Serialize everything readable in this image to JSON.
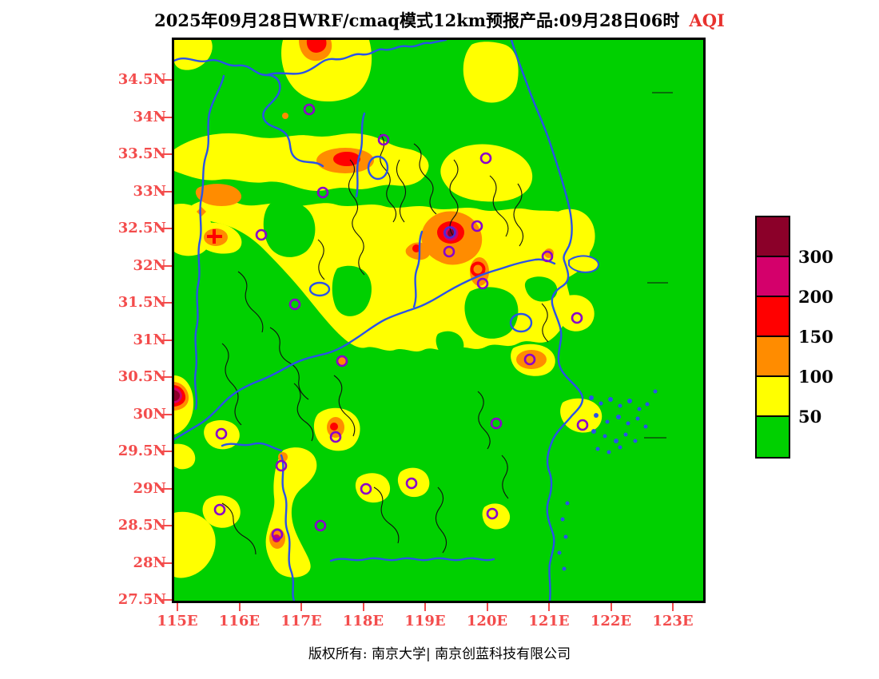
{
  "title": {
    "text": "2025年09月28日WRF/cmaq模式12km预报产品:09月28日06时",
    "highlight": "AQI"
  },
  "axes": {
    "lat_labels": [
      "34.5N",
      "34N",
      "33.5N",
      "33N",
      "32.5N",
      "32N",
      "31.5N",
      "31N",
      "30.5N",
      "30N",
      "29.5N",
      "29N",
      "28.5N",
      "28N",
      "27.5N"
    ],
    "lon_labels": [
      "115E",
      "116E",
      "117E",
      "118E",
      "119E",
      "120E",
      "121E",
      "122E",
      "123E"
    ],
    "label_color": "#f34c4c"
  },
  "legend": {
    "boundary_labels": [
      "300",
      "200",
      "150",
      "100",
      "50"
    ],
    "colors_top_to_bottom": [
      "#8b0029",
      "#d4006b",
      "#ff0000",
      "#ff8c00",
      "#ffff00",
      "#00d000"
    ]
  },
  "map_colors": {
    "land_background": "#00d000",
    "aqi_50_100": "#ffff00",
    "aqi_100_150": "#ff8c00",
    "aqi_150_200": "#ff0000",
    "aqi_200_300": "#d4006b",
    "aqi_over_300": "#8b0029",
    "province_boundary": "#2a52e8",
    "county_boundary": "#101010",
    "city_marker": "#8a00cc"
  },
  "footer": {
    "copyright": "版权所有: 南京大学| 南京创蓝科技有限公司"
  }
}
